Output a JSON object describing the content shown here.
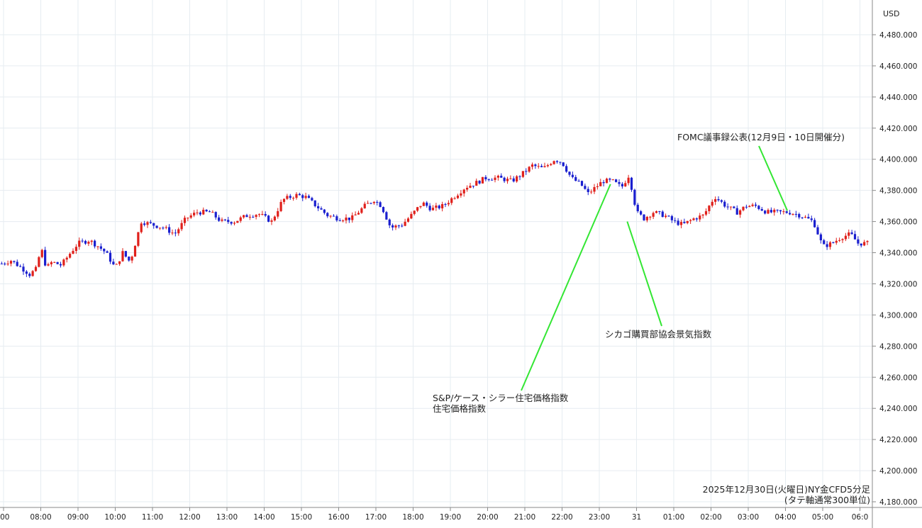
{
  "chart_data": {
    "type": "candlestick",
    "currency_label": "USD",
    "ylim": [
      4180,
      4490
    ],
    "y_ticks": [
      4180,
      4200,
      4220,
      4240,
      4260,
      4280,
      4300,
      4320,
      4340,
      4360,
      4380,
      4400,
      4420,
      4440,
      4460,
      4480
    ],
    "y_tick_labels": [
      "4,180.000",
      "4,200.000",
      "4,220.000",
      "4,240.000",
      "4,260.000",
      "4,280.000",
      "4,300.000",
      "4,320.000",
      "4,340.000",
      "4,360.000",
      "4,380.000",
      "4,400.000",
      "4,420.000",
      "4,440.000",
      "4,460.000",
      "4,480.000"
    ],
    "x_tick_labels": [
      ":00",
      "08:00",
      "09:00",
      "10:00",
      "11:00",
      "12:00",
      "13:00",
      "14:00",
      "15:00",
      "16:00",
      "17:00",
      "18:00",
      "19:00",
      "20:00",
      "21:00",
      "22:00",
      "23:00",
      "31",
      "01:00",
      "02:00",
      "03:00",
      "04:00",
      "05:00",
      "06:0"
    ],
    "x_tick_hours": [
      7,
      8,
      9,
      10,
      11,
      12,
      13,
      14,
      15,
      16,
      17,
      18,
      19,
      20,
      21,
      22,
      23,
      24,
      25,
      26,
      27,
      28,
      29,
      30
    ],
    "approx_close_path": [
      [
        6.95,
        4333
      ],
      [
        7.2,
        4335
      ],
      [
        7.5,
        4330
      ],
      [
        7.7,
        4326
      ],
      [
        7.9,
        4330
      ],
      [
        8.0,
        4344
      ],
      [
        8.15,
        4330
      ],
      [
        8.3,
        4334
      ],
      [
        8.55,
        4332
      ],
      [
        8.8,
        4340
      ],
      [
        9.0,
        4346
      ],
      [
        9.3,
        4348
      ],
      [
        9.55,
        4344
      ],
      [
        9.75,
        4340
      ],
      [
        10.0,
        4330
      ],
      [
        10.2,
        4340
      ],
      [
        10.4,
        4334
      ],
      [
        10.7,
        4360
      ],
      [
        11.0,
        4358
      ],
      [
        11.3,
        4356
      ],
      [
        11.6,
        4352
      ],
      [
        11.9,
        4362
      ],
      [
        12.2,
        4366
      ],
      [
        12.55,
        4366
      ],
      [
        12.85,
        4360
      ],
      [
        13.2,
        4360
      ],
      [
        13.55,
        4364
      ],
      [
        13.85,
        4365
      ],
      [
        14.2,
        4360
      ],
      [
        14.5,
        4374
      ],
      [
        14.85,
        4377
      ],
      [
        15.1,
        4376
      ],
      [
        15.4,
        4370
      ],
      [
        15.7,
        4364
      ],
      [
        16.0,
        4362
      ],
      [
        16.35,
        4362
      ],
      [
        16.7,
        4370
      ],
      [
        16.95,
        4374
      ],
      [
        17.15,
        4370
      ],
      [
        17.4,
        4356
      ],
      [
        17.7,
        4358
      ],
      [
        17.95,
        4364
      ],
      [
        18.25,
        4372
      ],
      [
        18.5,
        4368
      ],
      [
        18.8,
        4370
      ],
      [
        19.1,
        4376
      ],
      [
        19.4,
        4382
      ],
      [
        19.7,
        4385
      ],
      [
        19.95,
        4388
      ],
      [
        20.3,
        4388
      ],
      [
        20.65,
        4386
      ],
      [
        20.9,
        4390
      ],
      [
        21.2,
        4396
      ],
      [
        21.5,
        4394
      ],
      [
        21.8,
        4400
      ],
      [
        22.0,
        4398
      ],
      [
        22.25,
        4388
      ],
      [
        22.5,
        4384
      ],
      [
        22.7,
        4378
      ],
      [
        22.9,
        4382
      ],
      [
        23.1,
        4386
      ],
      [
        23.35,
        4386
      ],
      [
        23.6,
        4382
      ],
      [
        23.8,
        4390
      ],
      [
        24.0,
        4366
      ],
      [
        24.2,
        4362
      ],
      [
        24.45,
        4366
      ],
      [
        24.75,
        4364
      ],
      [
        25.0,
        4360
      ],
      [
        25.25,
        4358
      ],
      [
        25.55,
        4362
      ],
      [
        25.8,
        4364
      ],
      [
        26.1,
        4376
      ],
      [
        26.4,
        4370
      ],
      [
        26.7,
        4366
      ],
      [
        26.95,
        4370
      ],
      [
        27.2,
        4370
      ],
      [
        27.5,
        4366
      ],
      [
        27.8,
        4366
      ],
      [
        28.1,
        4366
      ],
      [
        28.4,
        4364
      ],
      [
        28.75,
        4360
      ],
      [
        29.0,
        4344
      ],
      [
        29.25,
        4346
      ],
      [
        29.5,
        4350
      ],
      [
        29.75,
        4352
      ],
      [
        29.95,
        4346
      ],
      [
        30.2,
        4346
      ]
    ],
    "annotations": [
      {
        "text": "FOMC議事録公表(12月9日・10日開催分)",
        "target": [
          28.05,
          4367
        ]
      },
      {
        "text": "シカゴ購買部協会景気指数",
        "target": [
          23.75,
          4360
        ]
      },
      {
        "text": "S&P/ケース・シラー住宅価格指数",
        "line2": "住宅価格指数",
        "target": [
          23.3,
          4384
        ]
      }
    ],
    "caption_line1": "2025年12月30日(火曜日)NY金CFD5分足",
    "caption_line2": "(タテ軸通常300単位)",
    "colors": {
      "up": "#e0201b",
      "down": "#1a1fcf",
      "annotation_line": "#33e633",
      "grid": "#e6ecf1",
      "axis": "#8a8a8a"
    }
  }
}
